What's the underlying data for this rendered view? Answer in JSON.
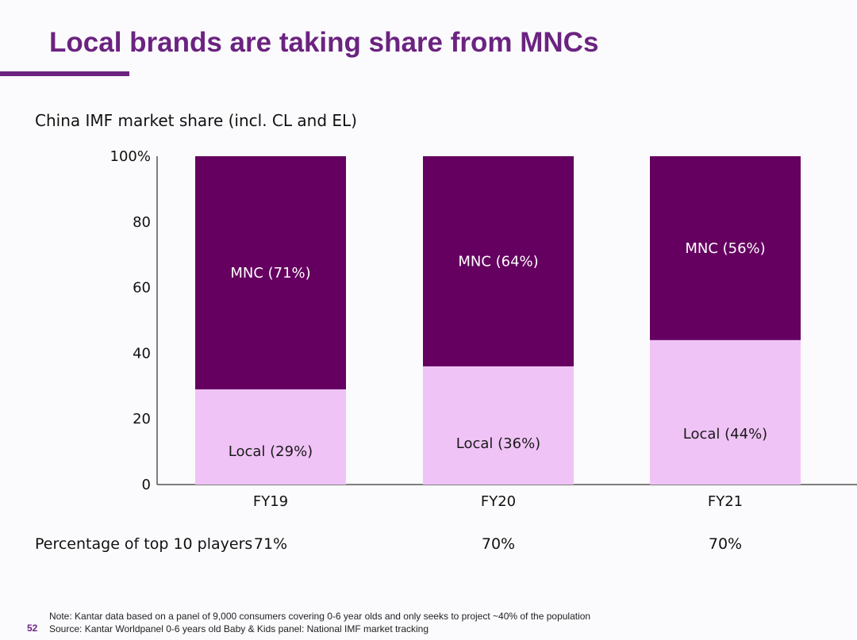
{
  "slide": {
    "title": "Local brands are taking share from MNCs",
    "page_number": "52"
  },
  "colors": {
    "brand_purple": "#6b2380",
    "mnc": "#650060",
    "local": "#f0c3f6"
  },
  "chart_data": {
    "type": "bar",
    "stacked": true,
    "title": "China IMF market share (incl. CL and EL)",
    "categories": [
      "FY19",
      "FY20",
      "FY21"
    ],
    "series": [
      {
        "name": "Local",
        "values": [
          29,
          36,
          44
        ],
        "labels": [
          "Local (29%)",
          "Local (36%)",
          "Local (44%)"
        ]
      },
      {
        "name": "MNC",
        "values": [
          71,
          64,
          56
        ],
        "labels": [
          "MNC (71%)",
          "MNC (64%)",
          "MNC (56%)"
        ]
      }
    ],
    "ylim": [
      0,
      100
    ],
    "yticks": [
      0,
      20,
      40,
      60,
      80,
      100
    ],
    "ytick_labels": [
      "0",
      "20",
      "40",
      "60",
      "80",
      "100%"
    ],
    "xlabel": "",
    "ylabel": "",
    "grid": false
  },
  "top10": {
    "label": "Percentage of top 10 players",
    "values": [
      "71%",
      "70%",
      "70%"
    ]
  },
  "footer": {
    "note": "Note: Kantar data based on a panel of 9,000 consumers covering 0-6 year olds and only seeks to project ~40% of the population",
    "source": "Source: Kantar Worldpanel 0-6 years old Baby & Kids panel: National IMF market tracking"
  }
}
